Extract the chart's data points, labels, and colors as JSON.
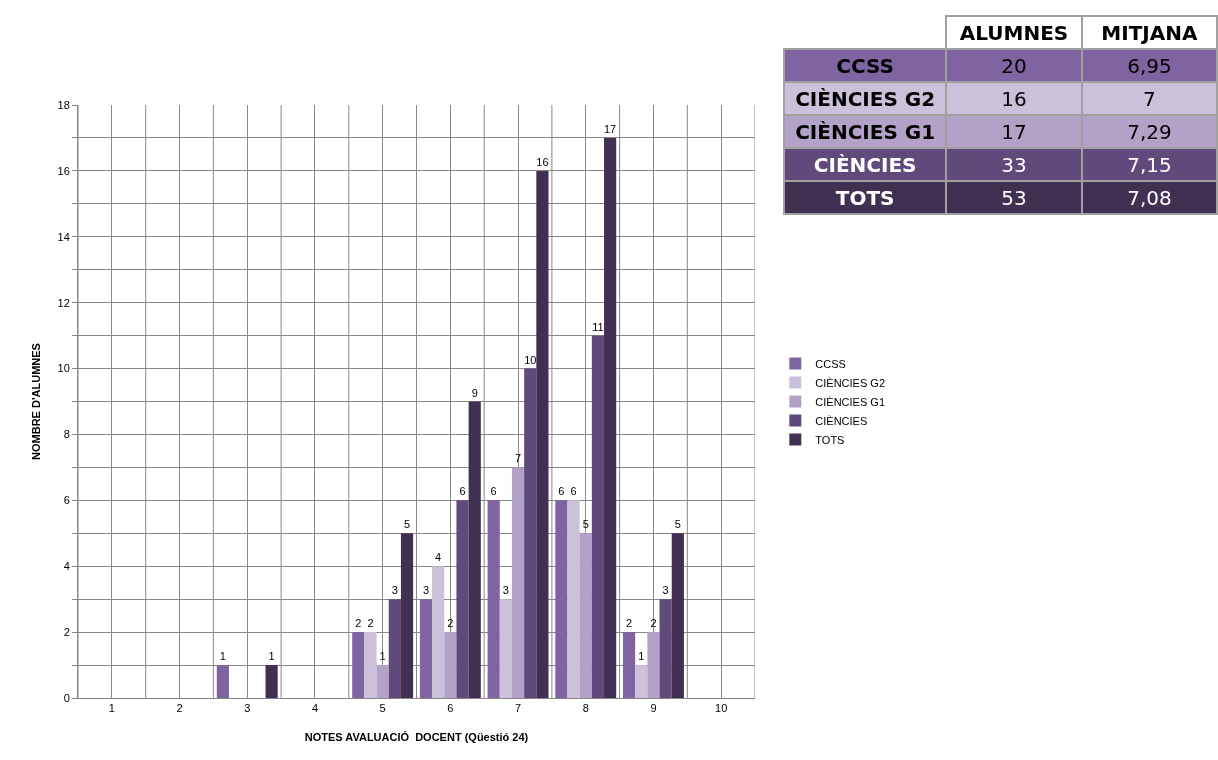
{
  "chart_data": [
    {
      "type": "bar",
      "xlabel": "NOTES AVALUACIÓ  DOCENT (Qüestió 24)",
      "ylabel": "NOMBRE D'ALUMNES",
      "categories": [
        "1",
        "2",
        "3",
        "4",
        "5",
        "6",
        "7",
        "8",
        "9",
        "10"
      ],
      "series": [
        {
          "name": "CCSS",
          "color": "#8064a2",
          "values": [
            null,
            null,
            1,
            null,
            2,
            3,
            6,
            6,
            2,
            null
          ]
        },
        {
          "name": "CIÈNCIES G2",
          "color": "#ccc1da",
          "values": [
            null,
            null,
            null,
            null,
            2,
            4,
            3,
            6,
            1,
            null
          ]
        },
        {
          "name": "CIÈNCIES G1",
          "color": "#b3a2c7",
          "values": [
            null,
            null,
            null,
            null,
            1,
            2,
            7,
            5,
            2,
            null
          ]
        },
        {
          "name": "CIÈNCIES",
          "color": "#604a7b",
          "values": [
            null,
            null,
            null,
            null,
            3,
            6,
            10,
            11,
            3,
            null
          ]
        },
        {
          "name": "TOTS",
          "color": "#403152",
          "values": [
            null,
            null,
            1,
            null,
            5,
            9,
            16,
            17,
            5,
            null
          ]
        }
      ],
      "ylim": [
        0,
        18
      ],
      "yticks": [
        0,
        {
          "value": 1,
          "label": null
        },
        2,
        {
          "value": 3,
          "label": null
        },
        4,
        {
          "value": 5,
          "label": null
        },
        6,
        {
          "value": 7,
          "label": null
        },
        8,
        {
          "value": 9,
          "label": null
        },
        10,
        {
          "value": 11,
          "label": null
        },
        12,
        {
          "value": 13,
          "label": null
        },
        14,
        {
          "value": 15,
          "label": null
        },
        16,
        {
          "value": 17,
          "label": null
        },
        18
      ],
      "grid": true,
      "legend": "right",
      "data_labels": true
    },
    {
      "type": "other",
      "categories": [
        "CCSS",
        "CIÈNCIES G2",
        "CIÈNCIES G1",
        "CIÈNCIES",
        "TOTS"
      ],
      "colors": [
        "#8064a2",
        "#ccc1da",
        "#b3a2c7",
        "#604a7b",
        "#403152"
      ],
      "series": [
        {
          "name": "ALUMNES",
          "colors": [
            "#8064a2",
            "#ccc1da",
            "#b3a2c7",
            "#604a7b",
            "#403152"
          ],
          "values": [
            20,
            16,
            17,
            33,
            53
          ]
        },
        {
          "name": "MITJANA",
          "colors": [
            "#8064a2",
            "#ccc1da",
            "#b3a2c7",
            "#604a7b",
            "#403152"
          ],
          "values": [
            6.95,
            7,
            7.29,
            7.15,
            7.08
          ],
          "value_labels": [
            "6,95",
            "7",
            "7,29",
            "7,15",
            "7,08"
          ]
        }
      ],
      "data_labels": true
    }
  ]
}
